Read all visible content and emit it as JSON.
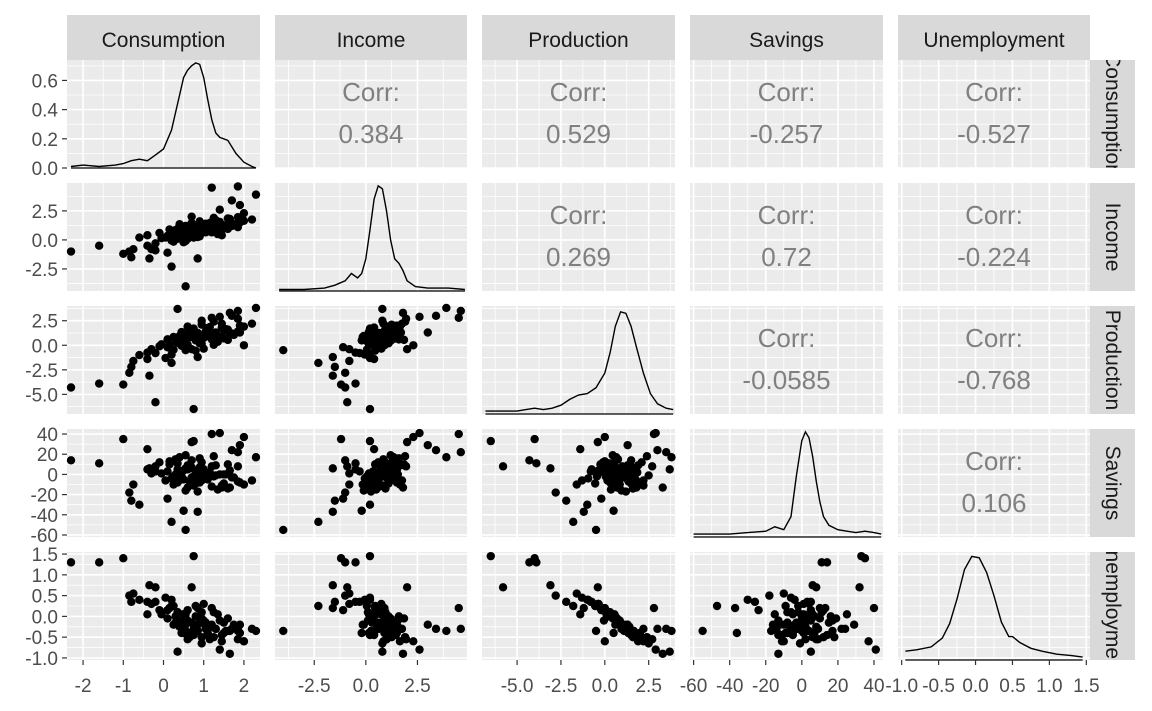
{
  "chart_data": {
    "type": "scatter",
    "variables": [
      "Consumption",
      "Income",
      "Production",
      "Savings",
      "Unemployment"
    ],
    "strip_top": [
      "Consumption",
      "Income",
      "Production",
      "Savings",
      "Unemployment"
    ],
    "strip_right": [
      "Consumption",
      "Income",
      "Production",
      "Savings",
      "Unemployment"
    ],
    "x_ranges": [
      [
        -2.4,
        2.4
      ],
      [
        -4.4,
        4.9
      ],
      [
        -7.0,
        4.0
      ],
      [
        -62,
        45
      ],
      [
        -1.05,
        1.55
      ]
    ],
    "y_ranges": [
      [
        -2.4,
        2.4
      ],
      [
        -4.4,
        4.9
      ],
      [
        -7.0,
        4.0
      ],
      [
        -62,
        45
      ],
      [
        -1.05,
        1.55
      ]
    ],
    "x_ticks": [
      {
        "values": [
          -2,
          -1,
          0,
          1,
          2
        ],
        "labels": [
          "-2",
          "-1",
          "0",
          "1",
          "2"
        ]
      },
      {
        "values": [
          -2.5,
          0.0,
          2.5
        ],
        "labels": [
          "-2.5",
          "0.0",
          "2.5"
        ]
      },
      {
        "values": [
          -5.0,
          -2.5,
          0.0,
          2.5
        ],
        "labels": [
          "-5.0",
          "-2.5",
          "0.0",
          "2.5"
        ]
      },
      {
        "values": [
          -60,
          -40,
          -20,
          0,
          20,
          40
        ],
        "labels": [
          "-60",
          "-40",
          "-20",
          "0",
          "20",
          "40"
        ]
      },
      {
        "values": [
          -1.0,
          -0.5,
          0.0,
          0.5,
          1.0,
          1.5
        ],
        "labels": [
          "-1.0",
          "-0.5",
          "0.0",
          "0.5",
          "1.0",
          "1.5"
        ]
      }
    ],
    "y_ticks": [
      {
        "values": [
          0.0,
          0.2,
          0.4,
          0.6
        ],
        "labels": [
          "0.0",
          "0.2",
          "0.4",
          "0.6"
        ]
      },
      {
        "values": [
          -2.5,
          0.0,
          2.5
        ],
        "labels": [
          "-2.5",
          "0.0",
          "2.5"
        ]
      },
      {
        "values": [
          -5.0,
          -2.5,
          0.0,
          2.5
        ],
        "labels": [
          "-5.0",
          "-2.5",
          "0.0",
          "2.5"
        ]
      },
      {
        "values": [
          -60,
          -40,
          -20,
          0,
          20,
          40
        ],
        "labels": [
          "-60",
          "-40",
          "-20",
          "0",
          "20",
          "40"
        ]
      },
      {
        "values": [
          -1.0,
          -0.5,
          0.0,
          0.5,
          1.0,
          1.5
        ],
        "labels": [
          "-1.0",
          "-0.5",
          "0.0",
          "0.5",
          "1.0",
          "1.5"
        ]
      }
    ],
    "density_ylim": [
      0,
      0.74
    ],
    "corr_label": "Corr:",
    "correlations": [
      {
        "row": 0,
        "col": 1,
        "value": "0.384"
      },
      {
        "row": 0,
        "col": 2,
        "value": "0.529"
      },
      {
        "row": 0,
        "col": 3,
        "value": "-0.257"
      },
      {
        "row": 0,
        "col": 4,
        "value": "-0.527"
      },
      {
        "row": 1,
        "col": 2,
        "value": "0.269"
      },
      {
        "row": 1,
        "col": 3,
        "value": "0.72"
      },
      {
        "row": 1,
        "col": 4,
        "value": "-0.224"
      },
      {
        "row": 2,
        "col": 3,
        "value": "-0.0585"
      },
      {
        "row": 2,
        "col": 4,
        "value": "-0.768"
      },
      {
        "row": 3,
        "col": 4,
        "value": "0.106"
      }
    ],
    "densities": [
      {
        "var": "Consumption",
        "x": [
          -2.3,
          -2.0,
          -1.6,
          -1.2,
          -1.0,
          -0.8,
          -0.6,
          -0.4,
          -0.2,
          0.0,
          0.2,
          0.4,
          0.5,
          0.6,
          0.7,
          0.8,
          0.9,
          1.0,
          1.1,
          1.2,
          1.3,
          1.4,
          1.6,
          1.8,
          2.0,
          2.2,
          2.3
        ],
        "y": [
          0.01,
          0.02,
          0.01,
          0.02,
          0.03,
          0.05,
          0.06,
          0.05,
          0.09,
          0.13,
          0.26,
          0.5,
          0.62,
          0.67,
          0.7,
          0.72,
          0.71,
          0.62,
          0.47,
          0.33,
          0.24,
          0.21,
          0.19,
          0.1,
          0.04,
          0.01,
          0.0
        ]
      },
      {
        "var": "Income",
        "x": [
          -4.2,
          -3.0,
          -2.0,
          -1.5,
          -1.0,
          -0.7,
          -0.4,
          -0.2,
          0.0,
          0.2,
          0.4,
          0.6,
          0.8,
          1.0,
          1.2,
          1.4,
          1.6,
          1.8,
          2.0,
          2.4,
          3.0,
          4.0,
          4.8
        ],
        "y": [
          0.01,
          0.01,
          0.02,
          0.04,
          0.07,
          0.12,
          0.09,
          0.12,
          0.22,
          0.42,
          0.63,
          0.72,
          0.7,
          0.55,
          0.35,
          0.22,
          0.19,
          0.14,
          0.07,
          0.03,
          0.02,
          0.02,
          0.01
        ]
      },
      {
        "var": "Production",
        "x": [
          -6.8,
          -6.0,
          -5.0,
          -4.5,
          -4.0,
          -3.5,
          -3.0,
          -2.5,
          -2.0,
          -1.5,
          -1.0,
          -0.5,
          0.0,
          0.3,
          0.6,
          0.9,
          1.2,
          1.5,
          1.8,
          2.2,
          2.6,
          3.0,
          3.5,
          3.9
        ],
        "y": [
          0.02,
          0.02,
          0.02,
          0.03,
          0.04,
          0.03,
          0.04,
          0.06,
          0.1,
          0.13,
          0.14,
          0.18,
          0.28,
          0.42,
          0.6,
          0.7,
          0.69,
          0.6,
          0.46,
          0.28,
          0.14,
          0.07,
          0.04,
          0.03
        ]
      },
      {
        "var": "Savings",
        "x": [
          -60,
          -50,
          -40,
          -30,
          -20,
          -15,
          -10,
          -6,
          -3,
          0,
          2,
          4,
          6,
          8,
          10,
          12,
          15,
          20,
          25,
          30,
          35,
          40,
          44
        ],
        "y": [
          0.02,
          0.02,
          0.02,
          0.03,
          0.04,
          0.07,
          0.05,
          0.14,
          0.42,
          0.66,
          0.72,
          0.68,
          0.55,
          0.38,
          0.24,
          0.14,
          0.08,
          0.05,
          0.04,
          0.03,
          0.04,
          0.03,
          0.02
        ]
      },
      {
        "var": "Unemployment",
        "x": [
          -0.95,
          -0.8,
          -0.6,
          -0.45,
          -0.35,
          -0.25,
          -0.15,
          -0.05,
          0.05,
          0.15,
          0.25,
          0.35,
          0.45,
          0.5,
          0.6,
          0.75,
          0.9,
          1.1,
          1.3,
          1.45
        ],
        "y": [
          0.06,
          0.07,
          0.09,
          0.15,
          0.25,
          0.42,
          0.62,
          0.71,
          0.7,
          0.6,
          0.44,
          0.26,
          0.16,
          0.16,
          0.12,
          0.08,
          0.06,
          0.04,
          0.03,
          0.02
        ]
      }
    ],
    "observations": [
      [
        0.45,
        0.4,
        -0.05,
        2.0,
        -0.1
      ],
      [
        0.85,
        1.05,
        1.25,
        -4.0,
        -0.2
      ],
      [
        1.65,
        1.5,
        1.1,
        4.0,
        -0.35
      ],
      [
        0.95,
        0.95,
        0.7,
        1.0,
        -0.05
      ],
      [
        1.1,
        1.3,
        1.75,
        -5.0,
        -0.45
      ],
      [
        0.25,
        0.05,
        -0.45,
        -2.0,
        0.25
      ],
      [
        0.55,
        0.75,
        0.3,
        6.0,
        0.05
      ],
      [
        1.3,
        1.2,
        0.95,
        -1.0,
        -0.3
      ],
      [
        0.7,
        0.55,
        0.85,
        -3.0,
        -0.15
      ],
      [
        -0.2,
        -0.3,
        -0.8,
        3.0,
        0.35
      ],
      [
        1.85,
        1.95,
        2.7,
        8.0,
        -0.55
      ],
      [
        0.05,
        0.2,
        -1.3,
        -6.0,
        0.45
      ],
      [
        0.8,
        0.95,
        0.5,
        3.0,
        0.0
      ],
      [
        1.05,
        1.4,
        1.4,
        2.0,
        -0.25
      ],
      [
        0.35,
        0.1,
        0.3,
        -8.0,
        0.1
      ],
      [
        1.5,
        1.1,
        1.5,
        -9.0,
        -0.4
      ],
      [
        0.6,
        0.7,
        0.05,
        5.0,
        0.15
      ],
      [
        0.95,
        1.25,
        2.1,
        12.0,
        -0.5
      ],
      [
        1.2,
        0.65,
        0.6,
        -12.0,
        -0.2
      ],
      [
        0.15,
        0.45,
        -0.25,
        10.0,
        0.2
      ],
      [
        0.75,
        0.85,
        1.05,
        -2.0,
        -0.3
      ],
      [
        1.4,
        1.55,
        0.85,
        0.0,
        -0.1
      ],
      [
        0.5,
        0.3,
        0.55,
        -5.0,
        0.05
      ],
      [
        2.0,
        1.65,
        1.9,
        -10.0,
        -0.6
      ],
      [
        0.9,
        1.1,
        0.2,
        7.0,
        0.0
      ],
      [
        0.3,
        0.85,
        0.75,
        15.0,
        -0.15
      ],
      [
        1.6,
        0.95,
        1.6,
        -14.0,
        -0.35
      ],
      [
        0.65,
        0.4,
        1.35,
        -7.0,
        -0.4
      ],
      [
        1.0,
        0.75,
        -0.35,
        4.0,
        0.3
      ],
      [
        -0.05,
        0.15,
        0.1,
        1.0,
        0.05
      ],
      [
        1.25,
        1.9,
        2.4,
        18.0,
        -0.5
      ],
      [
        0.4,
        0.55,
        0.95,
        0.0,
        -0.25
      ],
      [
        0.85,
        0.25,
        1.2,
        -17.0,
        -0.35
      ],
      [
        1.75,
        1.35,
        1.05,
        -3.0,
        -0.2
      ],
      [
        0.2,
        -0.05,
        -0.95,
        -4.0,
        0.4
      ],
      [
        1.15,
        1.0,
        1.85,
        2.0,
        -0.55
      ],
      [
        0.55,
        1.2,
        0.45,
        19.0,
        -0.05
      ],
      [
        0.95,
        0.6,
        0.15,
        -6.0,
        0.1
      ],
      [
        1.45,
        0.85,
        2.2,
        -11.0,
        -0.6
      ],
      [
        0.7,
        1.45,
        1.5,
        14.0,
        -0.45
      ],
      [
        -0.4,
        -0.5,
        -0.75,
        5.0,
        0.35
      ],
      [
        1.05,
        0.7,
        0.9,
        -1.0,
        -0.15
      ],
      [
        0.35,
        0.95,
        0.25,
        11.0,
        0.1
      ],
      [
        1.9,
        1.5,
        2.0,
        -8.0,
        -0.4
      ],
      [
        0.6,
        0.1,
        0.7,
        -13.0,
        -0.1
      ],
      [
        1.3,
        1.7,
        1.3,
        9.0,
        -0.3
      ],
      [
        0.1,
        0.35,
        0.6,
        3.0,
        -0.05
      ],
      [
        0.8,
        0.45,
        -0.55,
        -9.0,
        0.25
      ],
      [
        1.55,
        1.05,
        1.65,
        0.0,
        -0.35
      ],
      [
        0.45,
        0.6,
        1.1,
        -2.0,
        -0.25
      ],
      [
        2.2,
        1.75,
        2.2,
        -6.0,
        -0.3
      ],
      [
        0.9,
        1.6,
        0.6,
        16.0,
        0.0
      ],
      [
        0.25,
        -0.15,
        0.85,
        -10.0,
        -0.2
      ],
      [
        1.1,
        0.9,
        1.45,
        1.0,
        -0.4
      ],
      [
        0.65,
        1.05,
        1.6,
        6.0,
        -0.5
      ],
      [
        1.35,
        0.5,
        0.35,
        -15.0,
        0.05
      ],
      [
        -0.1,
        0.6,
        -0.1,
        12.0,
        0.15
      ],
      [
        1.7,
        1.2,
        1.2,
        -3.0,
        -0.3
      ],
      [
        0.5,
        0.8,
        0.2,
        4.0,
        0.05
      ],
      [
        1.0,
        1.3,
        0.75,
        5.0,
        -0.1
      ],
      [
        0.75,
        0.2,
        1.7,
        -11.0,
        -0.45
      ],
      [
        1.2,
        1.55,
        1.0,
        8.0,
        -0.25
      ],
      [
        0.3,
        0.35,
        0.4,
        0.0,
        0.0
      ],
      [
        0.95,
        0.8,
        2.5,
        -1.0,
        -0.65
      ],
      [
        1.6,
        1.85,
        0.55,
        10.0,
        -0.05
      ],
      [
        0.55,
        -0.1,
        0.95,
        -16.0,
        -0.2
      ],
      [
        0.85,
        1.15,
        1.15,
        3.0,
        -0.35
      ],
      [
        1.45,
        0.4,
        1.8,
        -13.0,
        -0.45
      ],
      [
        0.15,
        0.9,
        0.0,
        13.0,
        0.2
      ],
      [
        1.05,
        0.65,
        1.25,
        -4.0,
        -0.3
      ],
      [
        0.7,
        0.95,
        1.55,
        7.0,
        -0.4
      ],
      [
        1.85,
        1.1,
        1.4,
        -7.0,
        -0.35
      ],
      [
        0.4,
        1.35,
        0.65,
        17.0,
        -0.1
      ],
      [
        1.25,
        0.85,
        0.05,
        -2.0,
        0.1
      ],
      [
        0.9,
        0.3,
        0.8,
        -8.0,
        -0.15
      ],
      [
        0.6,
        1.0,
        1.9,
        9.0,
        -0.55
      ],
      [
        1.15,
        1.45,
        1.0,
        2.0,
        -0.25
      ],
      [
        -0.3,
        -0.8,
        -0.4,
        1.0,
        0.3
      ],
      [
        0.45,
        0.15,
        1.35,
        -5.0,
        -0.4
      ],
      [
        1.5,
        1.25,
        0.7,
        0.0,
        -0.15
      ],
      [
        -2.3,
        -1.0,
        -4.3,
        14.0,
        1.3
      ],
      [
        -1.6,
        -0.5,
        -3.9,
        11.0,
        1.3
      ],
      [
        -1.0,
        -1.2,
        -4.0,
        35.0,
        1.4
      ],
      [
        -0.2,
        -0.9,
        -5.8,
        8.0,
        0.7
      ],
      [
        -0.85,
        -1.0,
        -2.8,
        -18.0,
        0.5
      ],
      [
        -0.8,
        -1.5,
        -2.2,
        -26.0,
        0.35
      ],
      [
        -0.35,
        -1.6,
        -3.1,
        6.0,
        0.75
      ],
      [
        0.2,
        -2.3,
        -1.8,
        -47.0,
        0.25
      ],
      [
        0.85,
        -1.6,
        -1.2,
        -37.0,
        0.2
      ],
      [
        0.55,
        -4.0,
        -0.5,
        -55.0,
        -0.35
      ],
      [
        0.75,
        0.2,
        -6.5,
        33.0,
        1.45
      ],
      [
        1.7,
        3.4,
        3.0,
        24.0,
        -0.3
      ],
      [
        1.85,
        4.6,
        3.5,
        22.0,
        -0.3
      ],
      [
        1.2,
        4.5,
        2.8,
        40.0,
        0.2
      ],
      [
        2.3,
        3.9,
        3.8,
        17.0,
        -0.35
      ],
      [
        -0.6,
        0.2,
        -1.0,
        -30.0,
        0.4
      ],
      [
        -0.75,
        -0.8,
        -1.6,
        -10.0,
        0.55
      ],
      [
        0.1,
        -1.1,
        -0.2,
        -24.0,
        0.15
      ],
      [
        2.0,
        2.3,
        0.0,
        37.0,
        -0.6
      ],
      [
        1.4,
        2.6,
        2.9,
        41.0,
        -0.8
      ],
      [
        0.7,
        2.0,
        -0.4,
        32.0,
        0.7
      ],
      [
        1.65,
        1.8,
        3.3,
        -13.0,
        -0.9
      ],
      [
        0.5,
        -0.2,
        0.5,
        -36.0,
        -0.4
      ],
      [
        1.9,
        3.0,
        1.3,
        29.0,
        -0.2
      ],
      [
        0.35,
        0.8,
        3.7,
        5.0,
        -0.85
      ],
      [
        -0.4,
        0.4,
        -1.4,
        25.0,
        0.05
      ]
    ]
  }
}
